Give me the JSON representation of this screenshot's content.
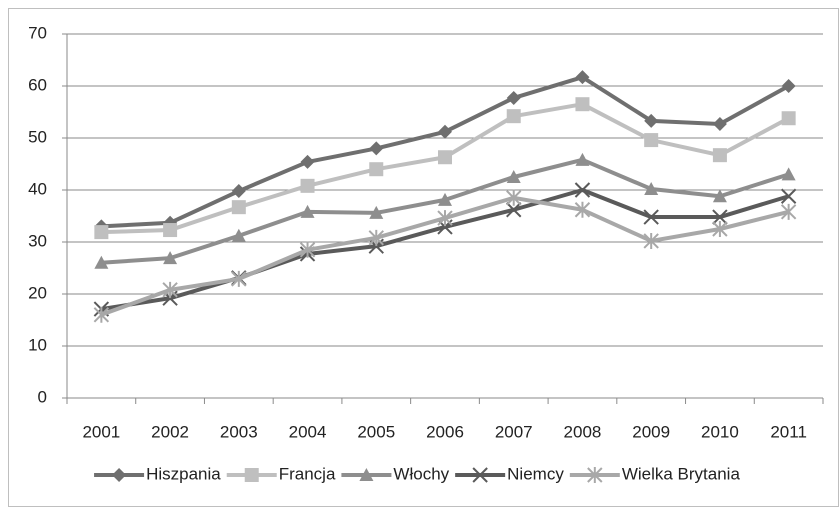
{
  "chart_data": {
    "type": "line",
    "x": [
      "2001",
      "2002",
      "2003",
      "2004",
      "2005",
      "2006",
      "2007",
      "2008",
      "2009",
      "2010",
      "2011"
    ],
    "series": [
      {
        "name": "Hiszpania",
        "color": "#6f6f6f",
        "marker": "diamond",
        "values": [
          33,
          33.7,
          39.8,
          45.4,
          48,
          51.2,
          57.7,
          61.7,
          53.3,
          52.7,
          60
        ]
      },
      {
        "name": "Francja",
        "color": "#bfbfbf",
        "marker": "square",
        "values": [
          31.9,
          32.3,
          36.7,
          40.8,
          44,
          46.3,
          54.2,
          56.5,
          49.6,
          46.7,
          53.8
        ]
      },
      {
        "name": "Włochy",
        "color": "#8e8e8e",
        "marker": "triangle",
        "values": [
          26,
          26.9,
          31.2,
          35.8,
          35.6,
          38.1,
          42.5,
          45.8,
          40.2,
          38.8,
          43
        ]
      },
      {
        "name": "Niemcy",
        "color": "#5a5a5a",
        "marker": "x",
        "values": [
          17.1,
          19.2,
          23.1,
          27.7,
          29.2,
          32.9,
          36.2,
          40,
          34.8,
          34.8,
          38.8
        ]
      },
      {
        "name": "Wielka Brytania",
        "color": "#a8a8a8",
        "marker": "star",
        "values": [
          16,
          20.8,
          22.9,
          28.5,
          30.8,
          34.6,
          38.5,
          36.2,
          30.2,
          32.5,
          35.8
        ]
      }
    ],
    "ylim": [
      0,
      70
    ],
    "yticks": [
      0,
      10,
      20,
      30,
      40,
      50,
      60,
      70
    ],
    "grid": true,
    "legend": "bottom"
  }
}
